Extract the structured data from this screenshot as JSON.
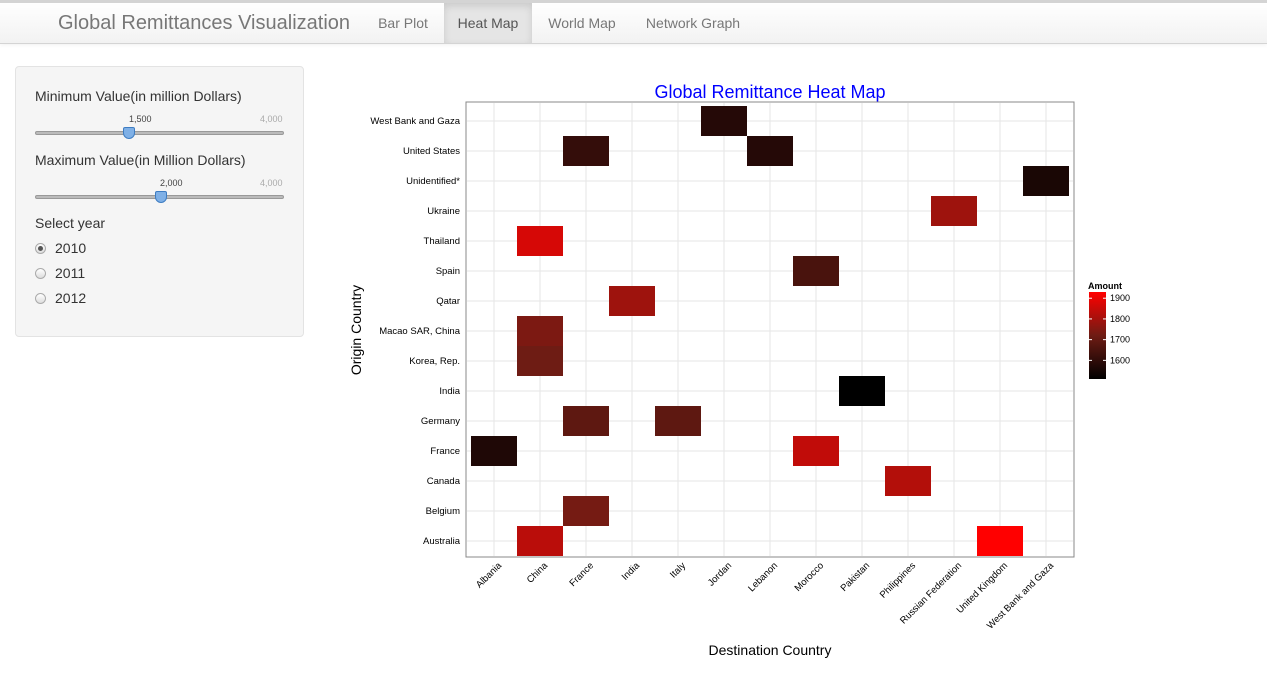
{
  "navbar": {
    "brand": "Global Remittances Visualization",
    "tabs": [
      {
        "label": "Bar Plot",
        "active": false
      },
      {
        "label": "Heat Map",
        "active": true
      },
      {
        "label": "World Map",
        "active": false
      },
      {
        "label": "Network Graph",
        "active": false
      }
    ]
  },
  "sidebar": {
    "min_slider": {
      "label": "Minimum Value(in million Dollars)",
      "value": 1500,
      "value_text": "1,500",
      "max": 4000,
      "max_text": "4,000"
    },
    "max_slider": {
      "label": "Maximum Value(in Million Dollars)",
      "value": 2000,
      "value_text": "2,000",
      "max": 4000,
      "max_text": "4,000"
    },
    "year": {
      "label": "Select year",
      "options": [
        {
          "label": "2010",
          "checked": true
        },
        {
          "label": "2011",
          "checked": false
        },
        {
          "label": "2012",
          "checked": false
        }
      ]
    }
  },
  "colors": {
    "low": "#000000",
    "mid": "#6e1c14",
    "high": "#ff0000",
    "title": "#0000ff"
  },
  "chart_data": {
    "type": "heatmap",
    "title": "Global Remittance Heat Map",
    "xlabel": "Destination Country",
    "ylabel": "Origin Country",
    "x": [
      "Albania",
      "China",
      "France",
      "India",
      "Italy",
      "Jordan",
      "Lebanon",
      "Morocco",
      "Pakistan",
      "Philippines",
      "Russian Federation",
      "United Kingdom",
      "West Bank and Gaza"
    ],
    "y": [
      "Australia",
      "Belgium",
      "Canada",
      "France",
      "Germany",
      "India",
      "Korea, Rep.",
      "Macao SAR, China",
      "Qatar",
      "Spain",
      "Thailand",
      "Ukraine",
      "Unidentified*",
      "United States",
      "West Bank and Gaza"
    ],
    "cells": [
      {
        "x": "Jordan",
        "y": "West Bank and Gaza",
        "value": 1580
      },
      {
        "x": "France",
        "y": "United States",
        "value": 1610
      },
      {
        "x": "Lebanon",
        "y": "United States",
        "value": 1580
      },
      {
        "x": "West Bank and Gaza",
        "y": "Unidentified*",
        "value": 1560
      },
      {
        "x": "Russian Federation",
        "y": "Ukraine",
        "value": 1790
      },
      {
        "x": "China",
        "y": "Thailand",
        "value": 1870
      },
      {
        "x": "Morocco",
        "y": "Spain",
        "value": 1650
      },
      {
        "x": "India",
        "y": "Qatar",
        "value": 1790
      },
      {
        "x": "China",
        "y": "Macao SAR, China",
        "value": 1740
      },
      {
        "x": "China",
        "y": "Korea, Rep.",
        "value": 1720
      },
      {
        "x": "Pakistan",
        "y": "India",
        "value": 1510
      },
      {
        "x": "France",
        "y": "Germany",
        "value": 1690
      },
      {
        "x": "Italy",
        "y": "Germany",
        "value": 1690
      },
      {
        "x": "Albania",
        "y": "France",
        "value": 1570
      },
      {
        "x": "Morocco",
        "y": "France",
        "value": 1840
      },
      {
        "x": "Philippines",
        "y": "Canada",
        "value": 1820
      },
      {
        "x": "France",
        "y": "Belgium",
        "value": 1730
      },
      {
        "x": "China",
        "y": "Australia",
        "value": 1830
      },
      {
        "x": "United Kingdom",
        "y": "Australia",
        "value": 1930
      }
    ],
    "legend": {
      "title": "Amount",
      "ticks": [
        1600,
        1700,
        1800,
        1900
      ],
      "range": [
        1510,
        1930
      ],
      "placement": "right"
    },
    "grid": true
  }
}
